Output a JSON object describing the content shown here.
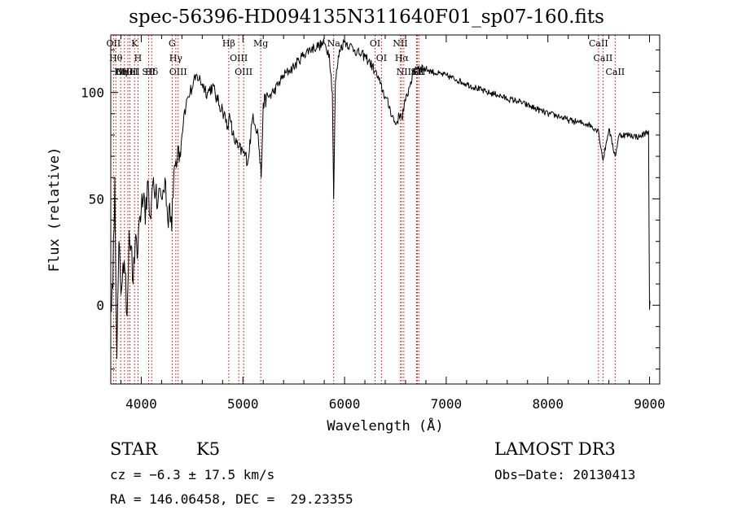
{
  "chart_data": {
    "type": "line",
    "title": "spec-56396-HD094135N311640F01_sp07-160.fits",
    "xlabel": "Wavelength (Å)",
    "ylabel": "Flux (relative)",
    "xlim": [
      3700,
      9100
    ],
    "ylim": [
      -37,
      127
    ],
    "x_ticks": [
      4000,
      5000,
      6000,
      7000,
      8000,
      9000
    ],
    "y_ticks": [
      0,
      50,
      100
    ],
    "series": [
      {
        "name": "spectrum",
        "x": [
          3700,
          3720,
          3740,
          3760,
          3780,
          3800,
          3820,
          3840,
          3860,
          3880,
          3900,
          3920,
          3940,
          3960,
          3980,
          4000,
          4020,
          4040,
          4060,
          4080,
          4100,
          4120,
          4140,
          4160,
          4180,
          4200,
          4220,
          4240,
          4260,
          4280,
          4300,
          4320,
          4340,
          4360,
          4380,
          4400,
          4420,
          4440,
          4460,
          4480,
          4500,
          4550,
          4600,
          4650,
          4700,
          4750,
          4800,
          4850,
          4861,
          4880,
          4900,
          4950,
          5000,
          5050,
          5100,
          5150,
          5180,
          5200,
          5250,
          5300,
          5350,
          5400,
          5450,
          5500,
          5550,
          5600,
          5650,
          5700,
          5750,
          5800,
          5850,
          5880,
          5893,
          5910,
          5950,
          6000,
          6050,
          6100,
          6150,
          6200,
          6250,
          6300,
          6350,
          6400,
          6450,
          6500,
          6550,
          6563,
          6600,
          6650,
          6700,
          6750,
          6800,
          6900,
          7000,
          7100,
          7200,
          7300,
          7400,
          7500,
          7600,
          7700,
          7800,
          7900,
          8000,
          8100,
          8200,
          8300,
          8400,
          8498,
          8542,
          8600,
          8662,
          8700,
          8800,
          8900,
          8990,
          9000,
          9005
        ],
        "y": [
          0,
          8,
          60,
          -25,
          30,
          5,
          20,
          15,
          -5,
          35,
          28,
          10,
          30,
          22,
          40,
          45,
          50,
          38,
          58,
          42,
          48,
          60,
          52,
          46,
          55,
          50,
          54,
          58,
          40,
          48,
          35,
          62,
          68,
          75,
          72,
          80,
          90,
          94,
          98,
          100,
          102,
          108,
          104,
          100,
          103,
          96,
          92,
          84,
          88,
          86,
          80,
          74,
          72,
          68,
          90,
          80,
          60,
          95,
          98,
          100,
          104,
          108,
          110,
          112,
          115,
          118,
          120,
          121,
          122,
          123,
          118,
          100,
          50,
          105,
          120,
          124,
          122,
          120,
          118,
          117,
          114,
          110,
          104,
          98,
          92,
          85,
          90,
          88,
          96,
          105,
          112,
          112,
          111,
          109,
          108,
          106,
          104,
          102,
          100,
          99,
          97,
          96,
          94,
          92,
          90,
          89,
          87,
          86,
          85,
          82,
          68,
          83,
          70,
          80,
          80,
          79,
          82,
          -2,
          2
        ]
      }
    ],
    "line_markers": [
      {
        "x": 3727,
        "label": "OII"
      },
      {
        "x": 3750,
        "label": "Hθ"
      },
      {
        "x": 3798,
        "label": "Hη"
      },
      {
        "x": 3835,
        "label": "OIII"
      },
      {
        "x": 3869,
        "label": "NeIII"
      },
      {
        "x": 3889,
        "label": "HeI"
      },
      {
        "x": 3934,
        "label": "K"
      },
      {
        "x": 3968,
        "label": "H"
      },
      {
        "x": 4072,
        "label": "SII"
      },
      {
        "x": 4102,
        "label": "Hδ"
      },
      {
        "x": 4304,
        "label": "G"
      },
      {
        "x": 4340,
        "label": "Hγ"
      },
      {
        "x": 4363,
        "label": "OIII"
      },
      {
        "x": 4861,
        "label": "Hβ"
      },
      {
        "x": 4959,
        "label": "OIII"
      },
      {
        "x": 5007,
        "label": "OIII"
      },
      {
        "x": 5175,
        "label": "Mg"
      },
      {
        "x": 5893,
        "label": "Na"
      },
      {
        "x": 6300,
        "label": "OI"
      },
      {
        "x": 6363,
        "label": "OI"
      },
      {
        "x": 6548,
        "label": "NII"
      },
      {
        "x": 6563,
        "label": "Hα"
      },
      {
        "x": 6583,
        "label": "NII"
      },
      {
        "x": 6708,
        "label": "Li"
      },
      {
        "x": 6716,
        "label": "SII"
      },
      {
        "x": 6731,
        "label": "SII"
      },
      {
        "x": 8498,
        "label": "CaII"
      },
      {
        "x": 8542,
        "label": "CaII"
      },
      {
        "x": 8662,
        "label": "CaII"
      }
    ]
  },
  "info": {
    "object_class": "STAR",
    "subclass": "K5",
    "survey": "LAMOST DR3",
    "cz": "cz = −6.3 ± 17.5 km/s",
    "obs_date": "Obs−Date: 20130413",
    "coords": "RA = 146.06458, DEC =  29.23355"
  }
}
